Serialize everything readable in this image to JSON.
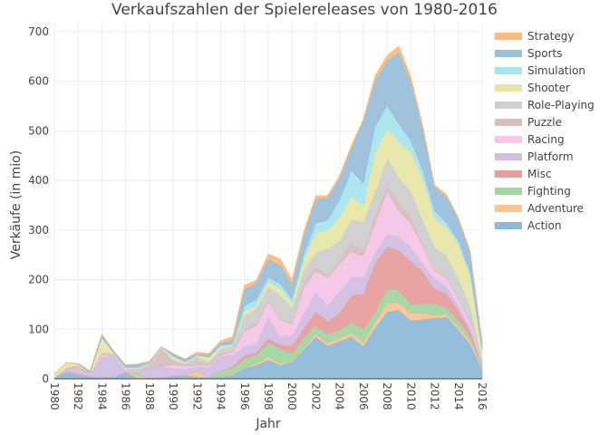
{
  "chart_data": {
    "type": "area",
    "stacked": true,
    "title": "Verkaufszahlen der Spielereleases von 1980-2016",
    "xlabel": "Jahr",
    "ylabel": "Verkäufe (in mio)",
    "xlim": [
      1980,
      2016
    ],
    "ylim": [
      0,
      720
    ],
    "x_ticks": [
      "1980",
      "1982",
      "1984",
      "1986",
      "1988",
      "1990",
      "1992",
      "1994",
      "1996",
      "1998",
      "2000",
      "2002",
      "2004",
      "2006",
      "2008",
      "2010",
      "2012",
      "2014",
      "2016"
    ],
    "y_ticks": [
      "0",
      "100",
      "200",
      "300",
      "400",
      "500",
      "600",
      "700"
    ],
    "legend_position": "right",
    "x": [
      1980,
      1981,
      1982,
      1983,
      1984,
      1985,
      1986,
      1987,
      1988,
      1989,
      1990,
      1991,
      1992,
      1993,
      1994,
      1995,
      1996,
      1997,
      1998,
      1999,
      2000,
      2001,
      2002,
      2003,
      2004,
      2005,
      2006,
      2007,
      2008,
      2009,
      2010,
      2011,
      2012,
      2013,
      2014,
      2015,
      2016
    ],
    "series": [
      {
        "name": "Action",
        "color": "#8FB9DA",
        "values": [
          1,
          15,
          8,
          5,
          3,
          4,
          13,
          2,
          2,
          2,
          6,
          7,
          4,
          3,
          4,
          8,
          22,
          28,
          38,
          28,
          34,
          60,
          85,
          67,
          76,
          85,
          66,
          104,
          135,
          139,
          118,
          120,
          123,
          125,
          100,
          70,
          20
        ]
      },
      {
        "name": "Adventure",
        "color": "#FFC490",
        "values": [
          0,
          0,
          0,
          0,
          0,
          0,
          0,
          5,
          0,
          0,
          0,
          0,
          11,
          0,
          0,
          2,
          1,
          3,
          7,
          3,
          2,
          3,
          6,
          5,
          6,
          8,
          7,
          11,
          17,
          14,
          14,
          12,
          5,
          5,
          5,
          7,
          2
        ]
      },
      {
        "name": "Fighting",
        "color": "#A3D6A3",
        "values": [
          1,
          0,
          0,
          0,
          0,
          0,
          1,
          6,
          0,
          0,
          0,
          1,
          0,
          1,
          12,
          12,
          17,
          18,
          28,
          30,
          16,
          21,
          16,
          18,
          17,
          21,
          27,
          18,
          30,
          25,
          18,
          20,
          24,
          14,
          13,
          8,
          4
        ]
      },
      {
        "name": "Misc",
        "color": "#E99E9E",
        "values": [
          1,
          0,
          2,
          0,
          1,
          0,
          0,
          0,
          0,
          1,
          0,
          0,
          0,
          0,
          0,
          3,
          8,
          4,
          9,
          8,
          15,
          20,
          28,
          26,
          34,
          54,
          72,
          101,
          85,
          81,
          88,
          65,
          30,
          28,
          20,
          12,
          2
        ]
      },
      {
        "name": "Platform",
        "color": "#D2BFE3",
        "values": [
          0,
          6,
          5,
          6,
          40,
          42,
          2,
          3,
          18,
          22,
          15,
          12,
          10,
          20,
          30,
          23,
          17,
          18,
          44,
          16,
          20,
          28,
          41,
          32,
          43,
          37,
          33,
          22,
          25,
          28,
          28,
          16,
          20,
          15,
          10,
          6,
          2
        ]
      },
      {
        "name": "Racing",
        "color": "#F5C6E8",
        "values": [
          0,
          0,
          2,
          0,
          5,
          0,
          2,
          1,
          0,
          0,
          7,
          5,
          2,
          3,
          2,
          6,
          31,
          37,
          30,
          33,
          23,
          53,
          41,
          56,
          56,
          51,
          42,
          58,
          86,
          50,
          47,
          36,
          15,
          17,
          12,
          10,
          3
        ]
      },
      {
        "name": "Puzzle",
        "color": "#D7BFBE",
        "values": [
          0,
          2,
          10,
          1,
          4,
          4,
          0,
          0,
          6,
          36,
          8,
          4,
          8,
          4,
          5,
          2,
          4,
          6,
          4,
          1,
          3,
          9,
          10,
          5,
          8,
          21,
          12,
          16,
          12,
          20,
          13,
          5,
          3,
          2,
          1,
          1,
          0
        ]
      },
      {
        "name": "Role-Playing",
        "color": "#CFCFCF",
        "values": [
          0,
          0,
          0,
          0,
          0,
          0,
          3,
          4,
          5,
          3,
          3,
          2,
          10,
          3,
          8,
          10,
          28,
          28,
          26,
          50,
          31,
          26,
          27,
          54,
          38,
          45,
          58,
          47,
          55,
          49,
          52,
          47,
          45,
          44,
          41,
          33,
          7
        ]
      },
      {
        "name": "Shooter",
        "color": "#E8E6A8",
        "values": [
          7,
          10,
          3,
          0,
          30,
          2,
          2,
          2,
          1,
          1,
          6,
          3,
          1,
          10,
          3,
          1,
          9,
          6,
          11,
          13,
          9,
          22,
          40,
          37,
          49,
          45,
          33,
          80,
          60,
          72,
          80,
          85,
          60,
          55,
          70,
          62,
          18
        ]
      },
      {
        "name": "Simulation",
        "color": "#A8E5EE",
        "values": [
          0,
          0,
          0,
          0,
          0,
          0,
          0,
          0,
          0,
          0,
          0,
          0,
          2,
          0,
          4,
          3,
          11,
          12,
          8,
          10,
          8,
          9,
          20,
          20,
          34,
          54,
          44,
          52,
          46,
          36,
          22,
          15,
          14,
          10,
          6,
          6,
          0
        ]
      },
      {
        "name": "Sports",
        "color": "#9ABFDB",
        "values": [
          0,
          0,
          1,
          4,
          7,
          4,
          5,
          7,
          3,
          0,
          6,
          6,
          2,
          5,
          5,
          9,
          33,
          34,
          37,
          38,
          31,
          41,
          49,
          46,
          44,
          46,
          127,
          94,
          91,
          145,
          120,
          83,
          49,
          52,
          45,
          40,
          16
        ]
      },
      {
        "name": "Strategy",
        "color": "#FFBA7E",
        "values": [
          0,
          0,
          0,
          0,
          0,
          0,
          0,
          0,
          0,
          0,
          0,
          0,
          4,
          2,
          4,
          6,
          8,
          5,
          10,
          12,
          9,
          6,
          6,
          4,
          5,
          4,
          3,
          9,
          10,
          12,
          10,
          8,
          3,
          5,
          2,
          3,
          1
        ]
      }
    ]
  }
}
